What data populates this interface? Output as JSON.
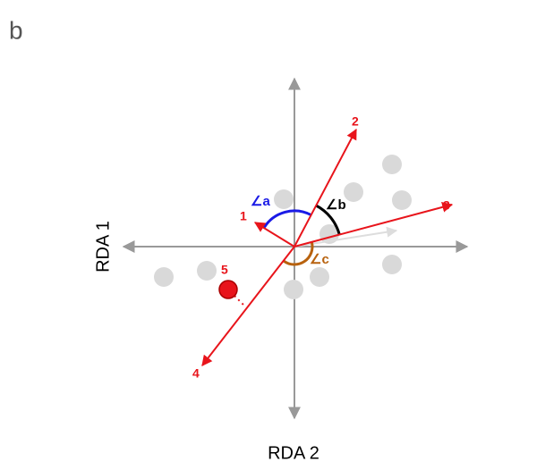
{
  "panel_label": "b",
  "axes": {
    "vertical": "RDA 1",
    "horizontal": "RDA 2"
  },
  "arrows": [
    "1",
    "2",
    "3",
    "4"
  ],
  "point_label": "5",
  "angles": [
    "∠a",
    "∠b",
    "∠c"
  ]
}
